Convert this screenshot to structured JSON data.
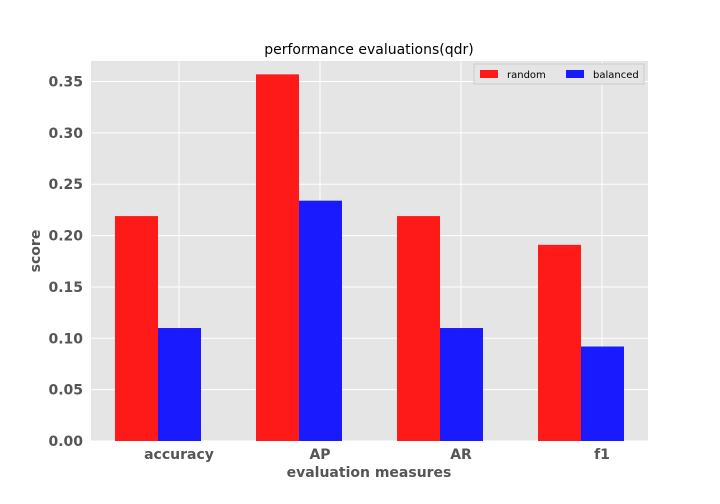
{
  "chart_data": {
    "type": "bar",
    "title": "performance evaluations(qdr)",
    "xlabel": "evaluation measures",
    "ylabel": "score",
    "categories": [
      "accuracy",
      "AP",
      "AR",
      "f1"
    ],
    "series": [
      {
        "name": "random",
        "values": [
          0.219,
          0.357,
          0.219,
          0.191
        ],
        "color": "#ff1a1a"
      },
      {
        "name": "balanced",
        "values": [
          0.11,
          0.234,
          0.11,
          0.092
        ],
        "color": "#1a1aff"
      }
    ],
    "ylim": [
      0,
      0.37
    ],
    "yticks": [
      "0.00",
      "0.05",
      "0.10",
      "0.15",
      "0.20",
      "0.25",
      "0.30",
      "0.35"
    ],
    "grid": true,
    "legend_position": "top-right",
    "background": "#e5e5e5"
  }
}
